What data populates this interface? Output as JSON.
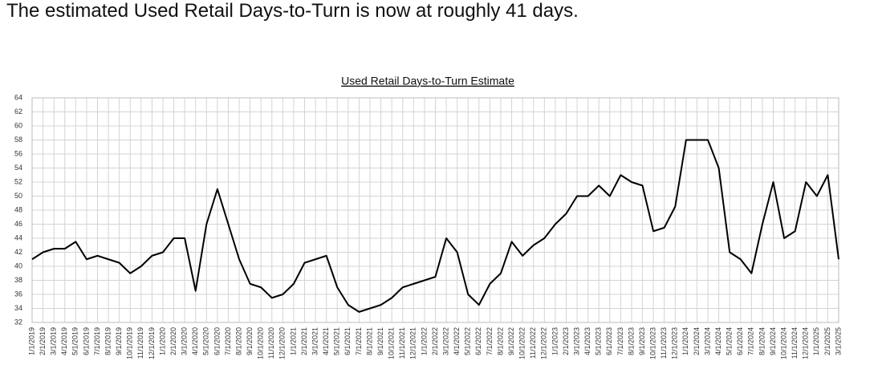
{
  "headline": "The estimated Used Retail Days-to-Turn is now at roughly 41 days.",
  "chart_data": {
    "type": "line",
    "title": "Used Retail Days-to-Turn Estimate",
    "categories": [
      "1/1/2019",
      "2/1/2019",
      "3/1/2019",
      "4/1/2019",
      "5/1/2019",
      "6/1/2019",
      "7/1/2019",
      "8/1/2019",
      "9/1/2019",
      "10/1/2019",
      "11/1/2019",
      "12/1/2019",
      "1/1/2020",
      "2/1/2020",
      "3/1/2020",
      "4/1/2020",
      "5/1/2020",
      "6/1/2020",
      "7/1/2020",
      "8/1/2020",
      "9/1/2020",
      "10/1/2020",
      "11/1/2020",
      "12/1/2020",
      "1/1/2021",
      "2/1/2021",
      "3/1/2021",
      "4/1/2021",
      "5/1/2021",
      "6/1/2021",
      "7/1/2021",
      "8/1/2021",
      "9/1/2021",
      "10/1/2021",
      "11/1/2021",
      "12/1/2021",
      "1/1/2022",
      "2/1/2022",
      "3/1/2022",
      "4/1/2022",
      "5/1/2022",
      "6/1/2022",
      "7/1/2022",
      "8/1/2022",
      "9/1/2022",
      "10/1/2022",
      "11/1/2022",
      "12/1/2022",
      "1/1/2023",
      "2/1/2023",
      "3/1/2023",
      "4/1/2023",
      "5/1/2023",
      "6/1/2023",
      "7/1/2023",
      "8/1/2023",
      "9/1/2023",
      "10/1/2023",
      "11/1/2023",
      "12/1/2023",
      "1/1/2024",
      "2/1/2024",
      "3/1/2024",
      "4/1/2024",
      "5/1/2024",
      "6/1/2024",
      "7/1/2024",
      "8/1/2024",
      "9/1/2024",
      "10/1/2024",
      "11/1/2024",
      "12/1/2024",
      "1/1/2025",
      "2/1/2025",
      "3/1/2025"
    ],
    "values": [
      41,
      42,
      42.5,
      42.5,
      43.5,
      41,
      41.5,
      41,
      40.5,
      39,
      40,
      41.5,
      42,
      44,
      44,
      36.5,
      46,
      51,
      46,
      41,
      37.5,
      37,
      35.5,
      36,
      37.5,
      40.5,
      41,
      41.5,
      37,
      34.5,
      33.5,
      34,
      34.5,
      35.5,
      37,
      37.5,
      38,
      38.5,
      44,
      42,
      36,
      34.5,
      37.5,
      39,
      43.5,
      41.5,
      43,
      44,
      46,
      47.5,
      50,
      50,
      51.5,
      50,
      53,
      52,
      51.5,
      45,
      45.5,
      48.5,
      58,
      58,
      58,
      54,
      42,
      41,
      39,
      46,
      52,
      44,
      45,
      52,
      50,
      53,
      41
    ],
    "color": "#000000",
    "ylim": [
      32,
      64
    ],
    "yticks": [
      32,
      34,
      36,
      38,
      40,
      42,
      44,
      46,
      48,
      50,
      52,
      54,
      56,
      58,
      60,
      62,
      64
    ],
    "grid": true
  }
}
